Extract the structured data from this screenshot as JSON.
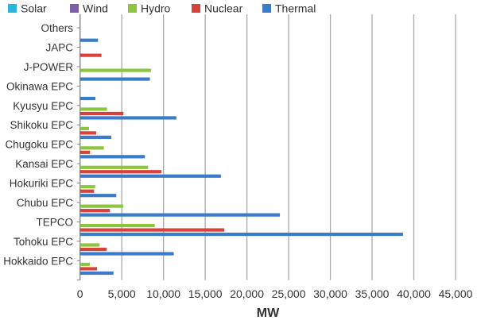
{
  "chart_data": {
    "type": "bar",
    "orientation": "horizontal",
    "title": "",
    "xlabel": "MW",
    "ylabel": "",
    "xlim": [
      0,
      45000
    ],
    "xticks": [
      "0",
      "5,000",
      "10,000",
      "15,000",
      "20,000",
      "25,000",
      "30,000",
      "35,000",
      "40,000",
      "45,000"
    ],
    "grid": true,
    "legend_position": "top",
    "categories": [
      "Others",
      "JAPC",
      "J-POWER",
      "Okinawa EPC",
      "Kyusyu EPC",
      "Shikoku EPC",
      "Chugoku EPC",
      "Kansai EPC",
      "Hokuriki EPC",
      "Chubu EPC",
      "TEPCO",
      "Tohoku EPC",
      "Hokkaido EPC"
    ],
    "series": [
      {
        "name": "Solar",
        "color": "#2bb5d8",
        "values": [
          0,
          0,
          0,
          0,
          0,
          0,
          0,
          0,
          0,
          0,
          0,
          0,
          0
        ]
      },
      {
        "name": "Wind",
        "color": "#7b5ea7",
        "values": [
          0,
          0,
          0,
          0,
          0,
          0,
          0,
          0,
          0,
          0,
          0,
          0,
          0
        ]
      },
      {
        "name": "Hydro",
        "color": "#8cc63f",
        "values": [
          0,
          0,
          8500,
          0,
          3230,
          1080,
          2850,
          8150,
          1810,
          5170,
          8950,
          2340,
          1170
        ]
      },
      {
        "name": "Nuclear",
        "color": "#d9423a",
        "values": [
          0,
          2570,
          0,
          0,
          5200,
          1930,
          1200,
          9740,
          1680,
          3580,
          17290,
          3200,
          2030
        ]
      },
      {
        "name": "Thermal",
        "color": "#3a7cc9",
        "values": [
          2150,
          0,
          8370,
          1840,
          11550,
          3740,
          7770,
          16880,
          4340,
          23950,
          38700,
          11230,
          4000
        ]
      }
    ]
  }
}
